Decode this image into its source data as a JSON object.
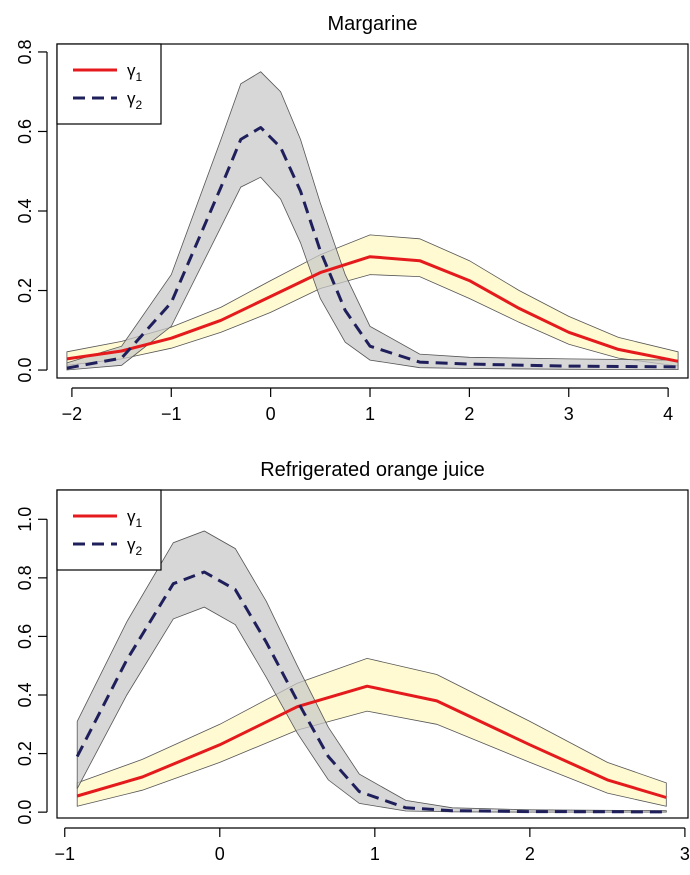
{
  "chart_data": [
    {
      "type": "line",
      "title": "Margarine",
      "xlabel": "",
      "ylabel": "",
      "xlim": [
        -2.15,
        4.2
      ],
      "ylim": [
        -0.02,
        0.82
      ],
      "xticks": [
        -2,
        -1,
        0,
        1,
        2,
        3,
        4
      ],
      "xtick_labels": [
        "−2",
        "−1",
        "0",
        "1",
        "2",
        "3",
        "4"
      ],
      "yticks": [
        0.0,
        0.2,
        0.4,
        0.6,
        0.8
      ],
      "ytick_labels": [
        "0.0",
        "0.2",
        "0.4",
        "0.6",
        "0.8"
      ],
      "grid": false,
      "legend_position": "top-left",
      "series": [
        {
          "name": "γ₁",
          "legend_main": "γ",
          "legend_sub": "1",
          "color": "#e41a1c",
          "band_color": "#fff8c0",
          "line_style": "solid",
          "x": [
            -2.05,
            -1.5,
            -1.0,
            -0.5,
            0.0,
            0.5,
            1.0,
            1.5,
            2.0,
            2.5,
            3.0,
            3.5,
            4.1
          ],
          "y": [
            0.028,
            0.048,
            0.08,
            0.125,
            0.185,
            0.245,
            0.285,
            0.275,
            0.225,
            0.155,
            0.095,
            0.052,
            0.022
          ],
          "lower": [
            0.012,
            0.028,
            0.055,
            0.095,
            0.145,
            0.205,
            0.24,
            0.235,
            0.18,
            0.12,
            0.065,
            0.03,
            0.01
          ],
          "upper": [
            0.046,
            0.072,
            0.108,
            0.158,
            0.225,
            0.29,
            0.34,
            0.33,
            0.275,
            0.2,
            0.135,
            0.082,
            0.046
          ]
        },
        {
          "name": "γ₂",
          "legend_main": "γ",
          "legend_sub": "2",
          "color": "#1f1f5c",
          "band_color": "#c8c8c8",
          "line_style": "dashed",
          "x": [
            -2.05,
            -1.5,
            -1.0,
            -0.5,
            -0.3,
            -0.1,
            0.1,
            0.3,
            0.5,
            0.75,
            1.0,
            1.5,
            2.0,
            3.0,
            4.1
          ],
          "y": [
            0.005,
            0.03,
            0.17,
            0.46,
            0.58,
            0.61,
            0.56,
            0.45,
            0.3,
            0.15,
            0.06,
            0.02,
            0.015,
            0.01,
            0.008
          ],
          "lower": [
            0.0,
            0.012,
            0.11,
            0.36,
            0.46,
            0.485,
            0.43,
            0.32,
            0.18,
            0.07,
            0.025,
            0.006,
            0.004,
            0.002,
            0.001
          ],
          "upper": [
            0.018,
            0.06,
            0.24,
            0.58,
            0.72,
            0.75,
            0.7,
            0.58,
            0.42,
            0.24,
            0.11,
            0.04,
            0.032,
            0.028,
            0.025
          ]
        }
      ]
    },
    {
      "type": "line",
      "title": "Refrigerated orange juice",
      "xlabel": "",
      "ylabel": "",
      "xlim": [
        -1.05,
        3.02
      ],
      "ylim": [
        -0.02,
        1.1
      ],
      "xticks": [
        -1,
        0,
        1,
        2,
        3
      ],
      "xtick_labels": [
        "−1",
        "0",
        "1",
        "2",
        "3"
      ],
      "yticks": [
        0.0,
        0.2,
        0.4,
        0.6,
        0.8,
        1.0
      ],
      "ytick_labels": [
        "0.0",
        "0.2",
        "0.4",
        "0.6",
        "0.8",
        "1.0"
      ],
      "grid": false,
      "legend_position": "top-left",
      "series": [
        {
          "name": "γ₁",
          "legend_main": "γ",
          "legend_sub": "1",
          "color": "#e41a1c",
          "band_color": "#fff8c0",
          "line_style": "solid",
          "x": [
            -0.92,
            -0.5,
            0.0,
            0.5,
            0.95,
            1.4,
            2.0,
            2.5,
            2.88
          ],
          "y": [
            0.055,
            0.12,
            0.23,
            0.36,
            0.43,
            0.38,
            0.23,
            0.11,
            0.05
          ],
          "lower": [
            0.02,
            0.075,
            0.17,
            0.28,
            0.345,
            0.3,
            0.17,
            0.065,
            0.02
          ],
          "upper": [
            0.1,
            0.18,
            0.3,
            0.44,
            0.525,
            0.47,
            0.31,
            0.17,
            0.1
          ]
        },
        {
          "name": "γ₂",
          "legend_main": "γ",
          "legend_sub": "2",
          "color": "#1f1f5c",
          "band_color": "#c8c8c8",
          "line_style": "dashed",
          "x": [
            -0.92,
            -0.6,
            -0.3,
            -0.1,
            0.1,
            0.3,
            0.5,
            0.7,
            0.9,
            1.2,
            1.5,
            2.0,
            2.88
          ],
          "y": [
            0.19,
            0.52,
            0.78,
            0.82,
            0.76,
            0.58,
            0.38,
            0.19,
            0.07,
            0.015,
            0.005,
            0.002,
            0.001
          ],
          "lower": [
            0.08,
            0.4,
            0.66,
            0.7,
            0.64,
            0.46,
            0.27,
            0.11,
            0.03,
            0.004,
            0.001,
            0.0,
            0.0
          ],
          "upper": [
            0.31,
            0.65,
            0.92,
            0.96,
            0.9,
            0.72,
            0.5,
            0.29,
            0.13,
            0.04,
            0.015,
            0.008,
            0.005
          ]
        }
      ]
    }
  ]
}
